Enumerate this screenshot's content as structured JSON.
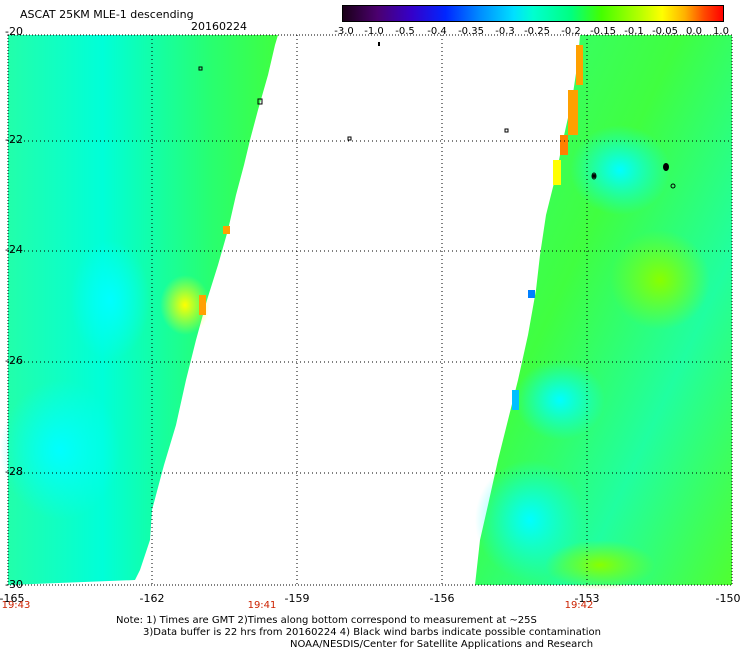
{
  "title": "ASCAT 25KM MLE-1 descending",
  "date": "20160224",
  "colorbar": {
    "ticks": [
      "-3.0",
      "-1.0",
      "-0.5",
      "-0.4",
      "-0.35",
      "-0.3",
      "-0.25",
      "-0.2",
      "-0.15",
      "-0.1",
      "-0.05",
      "0.0",
      "1.0"
    ]
  },
  "latitude_labels": [
    "-20",
    "-22",
    "-24",
    "-26",
    "-28",
    "-30"
  ],
  "longitude_labels": [
    "-165",
    "-162",
    "-159",
    "-156",
    "-153",
    "-150"
  ],
  "time_labels": [
    "19:43",
    "19:41",
    "19:42"
  ],
  "notes": [
    "Note: 1) Times are GMT 2)Times along bottom correspond to measurement at ~25S",
    "3)Data buffer is 22 hrs from 20160224 4) Black wind barbs indicate possible contamination",
    "NOAA/NESDIS/Center for Satellite Applications and Research"
  ],
  "colors": {
    "low": "#00ffff",
    "mid": "#00ff60",
    "high": "#ffff00",
    "max": "#ff8000",
    "frame": "#000000"
  }
}
